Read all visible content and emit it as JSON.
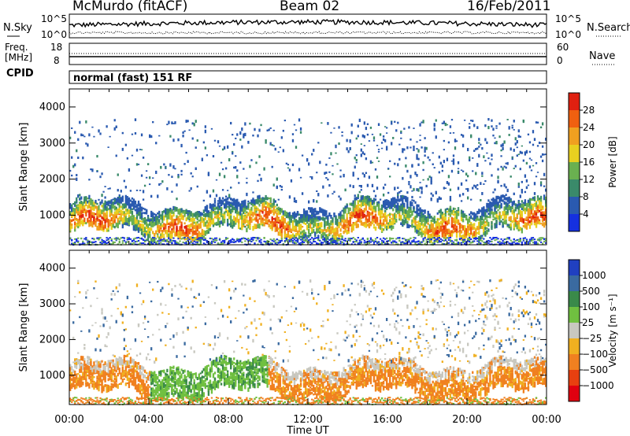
{
  "header": {
    "station": "McMurdo (fitACF)",
    "beam": "Beam 02",
    "date": "16/Feb/2011"
  },
  "status_panels": {
    "nsky_label": "N.Sky",
    "nsky_ticks": [
      "10^5",
      "10^0"
    ],
    "nsearch_label": "N.Search",
    "nsearch_ticks": [
      "10^5",
      "10^0"
    ],
    "freq_label_1": "Freq.",
    "freq_label_2": "[MHz]",
    "freq_ticks": [
      "18",
      "8"
    ],
    "nave_label": "Nave",
    "nave_ticks": [
      "60",
      "0"
    ],
    "cpid_label": "CPID",
    "cpid_value": "normal (fast) 151 RF"
  },
  "chart_data": [
    {
      "type": "heatmap",
      "name": "power",
      "ylabel": "Slant Range [km]",
      "yticks": [
        1000,
        2000,
        3000,
        4000
      ],
      "ylim": [
        180,
        4500
      ],
      "xlim_hours": [
        0,
        24
      ],
      "colorbar": {
        "label": "Power [dB]",
        "ticks": [
          "4",
          "8",
          "12",
          "16",
          "20",
          "24",
          "28"
        ],
        "colors": [
          "#1530e0",
          "#2a5ab0",
          "#3a8a6a",
          "#6ab050",
          "#e8d020",
          "#f0a020",
          "#f06010",
          "#e02010"
        ]
      }
    },
    {
      "type": "heatmap",
      "name": "velocity",
      "ylabel": "Slant Range [km]",
      "yticks": [
        1000,
        2000,
        3000,
        4000
      ],
      "ylim": [
        180,
        4500
      ],
      "xlim_hours": [
        0,
        24
      ],
      "xticks": [
        "00:00",
        "04:00",
        "08:00",
        "12:00",
        "16:00",
        "20:00",
        "00:00"
      ],
      "xlabel": "Time UT",
      "colorbar": {
        "label": "Velocity [m s⁻¹]",
        "ticks": [
          "1000",
          "500",
          "100",
          "25",
          "−25",
          "−100",
          "−500",
          "−1000"
        ],
        "colors": [
          "#2040c0",
          "#3a6aa0",
          "#3a8a4a",
          "#70c040",
          "#c8c8c0",
          "#f0b020",
          "#f08020",
          "#e84010",
          "#e00010"
        ]
      }
    }
  ]
}
